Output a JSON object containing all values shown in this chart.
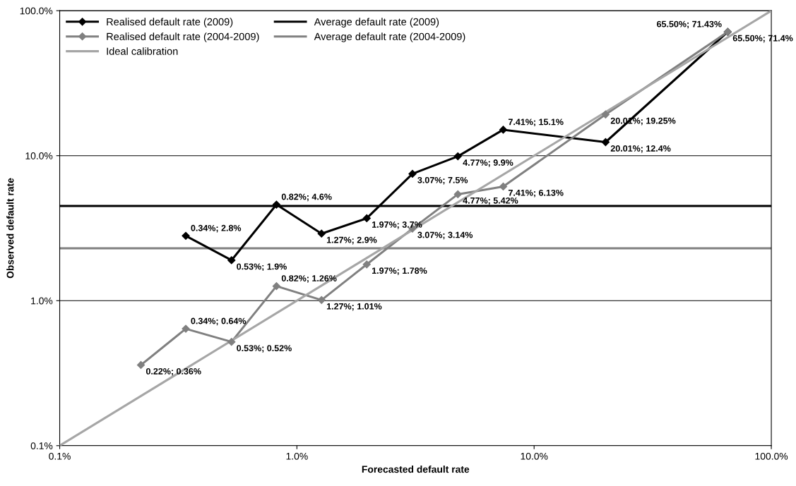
{
  "chart_data": {
    "type": "line",
    "xlabel": "Forecasted default rate",
    "ylabel": "Observed default rate",
    "log": "xy",
    "grid": "y",
    "legend": "top left",
    "marker": "diamond",
    "xlim": [
      0.1,
      100
    ],
    "ylim": [
      0.1,
      100
    ],
    "xticks": [
      {
        "value": 0.1,
        "label": "0.1%"
      },
      {
        "value": 1,
        "label": "1.0%"
      },
      {
        "value": 10,
        "label": "10.0%"
      },
      {
        "value": 100,
        "label": "100.0%"
      }
    ],
    "yticks": [
      {
        "value": 0.1,
        "label": "0.1%"
      },
      {
        "value": 1,
        "label": "1.0%"
      },
      {
        "value": 10,
        "label": "10.0%"
      },
      {
        "value": 100,
        "label": "100.0%"
      }
    ],
    "series": [
      {
        "name": "Realised default rate (2009)",
        "color": "#000000",
        "x": [
          0.34,
          0.53,
          0.82,
          1.27,
          1.97,
          3.07,
          4.77,
          7.41,
          20.01,
          65.5
        ],
        "values": [
          2.8,
          1.9,
          4.6,
          2.9,
          3.7,
          7.5,
          9.9,
          15.1,
          12.4,
          71.4
        ],
        "value_labels": [
          "0.34%; 2.8%",
          "0.53%; 1.9%",
          "0.82%; 4.6%",
          "1.27%; 2.9%",
          "1.97%; 3.7%",
          "3.07%; 7.5%",
          "4.77%; 9.9%",
          "7.41%; 15.1%",
          "20.01%; 12.4%",
          "65.50%; 71.4%"
        ]
      },
      {
        "name": "Realised default rate (2004-2009)",
        "color": "#808080",
        "x": [
          0.22,
          0.34,
          0.53,
          0.82,
          1.27,
          1.97,
          3.07,
          4.77,
          7.41,
          20.01,
          65.5
        ],
        "values": [
          0.36,
          0.64,
          0.52,
          1.26,
          1.01,
          1.78,
          3.14,
          5.42,
          6.13,
          19.25,
          71.43
        ],
        "value_labels": [
          "0.22%; 0.36%",
          "0.34%; 0.64%",
          "0.53%; 0.52%",
          "0.82%; 1.26%",
          "1.27%; 1.01%",
          "1.97%; 1.78%",
          "3.07%; 3.14%",
          "4.77%; 5.42%",
          "7.41%; 6.13%",
          "20.01%; 19.25%",
          "65.50%; 71.43%"
        ]
      },
      {
        "name": "Ideal calibration",
        "color": "#a6a6a6",
        "marker": "none",
        "x": [
          0.1,
          100
        ],
        "values": [
          0.1,
          100
        ]
      }
    ],
    "ref_lines": [
      {
        "axis": "y",
        "value": 4.5,
        "label": "Average default rate (2009)",
        "color": "#000000"
      },
      {
        "axis": "y",
        "value": 2.3,
        "label": "Average default rate (2004-2009)",
        "color": "#808080"
      }
    ]
  }
}
